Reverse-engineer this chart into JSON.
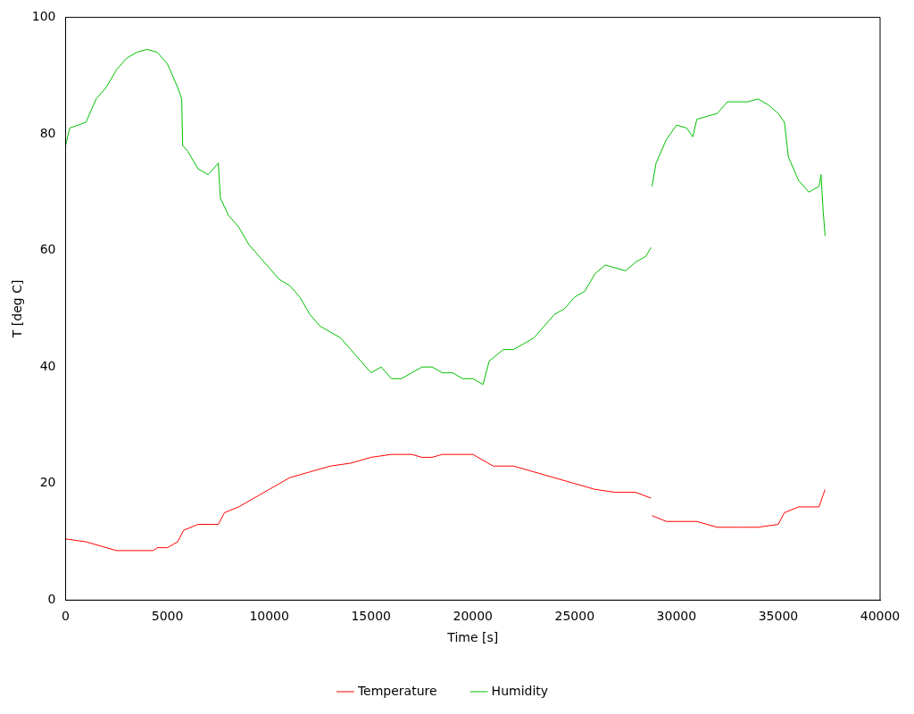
{
  "chart_data": {
    "type": "line",
    "xlabel": "Time [s]",
    "ylabel": "T [deg C]",
    "xlim": [
      0,
      40000
    ],
    "ylim": [
      0,
      100
    ],
    "xticks": [
      0,
      5000,
      10000,
      15000,
      20000,
      25000,
      30000,
      35000,
      40000
    ],
    "yticks": [
      0,
      20,
      40,
      60,
      80,
      100
    ],
    "grid": false,
    "legend": "bottom",
    "marker": "none",
    "line_style": "solid",
    "series": [
      {
        "name": "Temperature",
        "color": "#ff0000",
        "x": [
          0,
          1000,
          2000,
          2500,
          3000,
          4000,
          4300,
          4500,
          5000,
          5500,
          5800,
          6500,
          7000,
          7500,
          7800,
          8500,
          9000,
          9500,
          10000,
          10500,
          11000,
          12000,
          13000,
          14000,
          15000,
          16000,
          17000,
          17500,
          18000,
          18500,
          19000,
          20000,
          20500,
          21000,
          22000,
          23000,
          24000,
          25000,
          26000,
          27000,
          28000,
          28750,
          28790,
          28800,
          29500,
          30000,
          31000,
          32000,
          33000,
          34000,
          35000,
          35300,
          36000,
          37000,
          37300
        ],
        "values": [
          10.5,
          10,
          9,
          8.5,
          8.5,
          8.5,
          8.5,
          9,
          9,
          10,
          12,
          13,
          13,
          13,
          15,
          16,
          17,
          18,
          19,
          20,
          21,
          22,
          23,
          23.5,
          24.5,
          25,
          25,
          24.5,
          24.5,
          25,
          25,
          25,
          24,
          23,
          23,
          22,
          21,
          20,
          19,
          18.5,
          18.5,
          17.5,
          null,
          14.5,
          13.5,
          13.5,
          13.5,
          12.5,
          12.5,
          12.5,
          13,
          15,
          16,
          16,
          19
        ]
      },
      {
        "name": "Humidity",
        "color": "#00c000",
        "x": [
          0,
          200,
          1000,
          1500,
          2000,
          2500,
          3000,
          3500,
          4000,
          4500,
          5000,
          5500,
          5700,
          5750,
          6000,
          6500,
          7000,
          7500,
          7600,
          8000,
          8500,
          9000,
          9500,
          10000,
          10500,
          11000,
          11500,
          12000,
          12500,
          13000,
          13500,
          14000,
          14500,
          15000,
          15500,
          16000,
          16500,
          17000,
          17500,
          18000,
          18500,
          19000,
          19500,
          20000,
          20500,
          20800,
          21500,
          22000,
          22500,
          23000,
          23500,
          24000,
          24500,
          25000,
          25500,
          26000,
          26500,
          27000,
          27500,
          28000,
          28500,
          28750,
          28790,
          28800,
          29000,
          29500,
          30000,
          30500,
          30800,
          31000,
          31500,
          32000,
          32500,
          33000,
          33500,
          34000,
          34500,
          35000,
          35300,
          35500,
          36000,
          36500,
          37000,
          37100,
          37200,
          37300
        ],
        "values": [
          78,
          81,
          82,
          86,
          88,
          91,
          93,
          94,
          94.5,
          94,
          92,
          88,
          86,
          78,
          77,
          74,
          73,
          75,
          69,
          66,
          64,
          61,
          59,
          57,
          55,
          54,
          52,
          49,
          47,
          46,
          45,
          43,
          41,
          39,
          40,
          38,
          38,
          39,
          40,
          40,
          39,
          39,
          38,
          38,
          37,
          41,
          43,
          43,
          44,
          45,
          47,
          49,
          50,
          52,
          53,
          56,
          57.5,
          57,
          56.5,
          58,
          59,
          60.5,
          null,
          71,
          75,
          79,
          81.5,
          81,
          79.5,
          82.5,
          83,
          83.5,
          85.5,
          85.5,
          85.5,
          86,
          85,
          83.5,
          82,
          76,
          72,
          70,
          71,
          73,
          67,
          62.5
        ]
      }
    ]
  }
}
